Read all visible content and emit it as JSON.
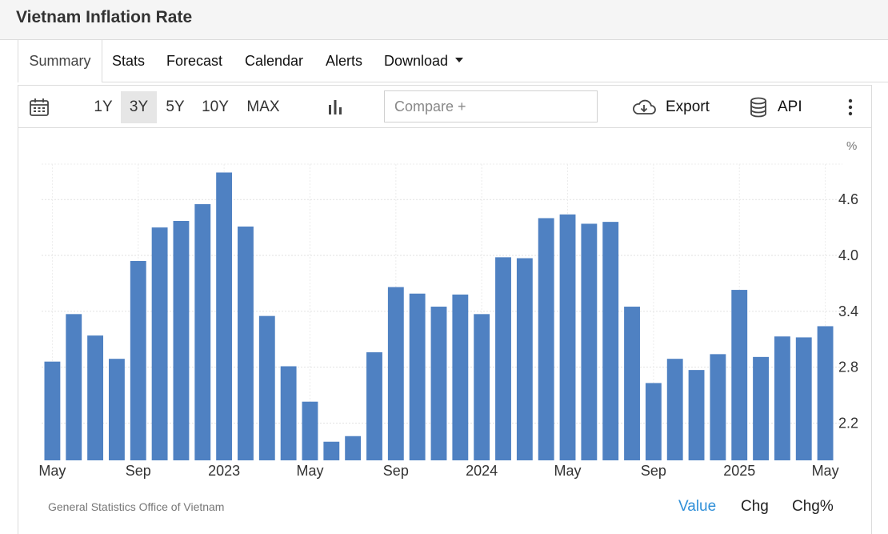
{
  "page": {
    "title": "Vietnam Inflation Rate"
  },
  "tabs": [
    {
      "label": "Summary",
      "active": true
    },
    {
      "label": "Stats"
    },
    {
      "label": "Forecast"
    },
    {
      "label": "Calendar"
    },
    {
      "label": "Alerts"
    },
    {
      "label": "Download",
      "has_dropdown": true
    }
  ],
  "toolbar": {
    "ranges": [
      "1Y",
      "3Y",
      "5Y",
      "10Y",
      "MAX"
    ],
    "selected_range": "3Y",
    "compare_placeholder": "Compare +",
    "export_label": "Export",
    "api_label": "API",
    "icons": [
      "calendar-icon",
      "bar-chart-icon",
      "cloud-download-icon",
      "database-icon",
      "more-vertical-icon"
    ]
  },
  "chart_data": {
    "type": "bar",
    "unit": "%",
    "bar_color": "#4f81c2",
    "categories": [
      "May 2022",
      "Jun 2022",
      "Jul 2022",
      "Aug 2022",
      "Sep 2022",
      "Oct 2022",
      "Nov 2022",
      "Dec 2022",
      "Jan 2023",
      "Feb 2023",
      "Mar 2023",
      "Apr 2023",
      "May 2023",
      "Jun 2023",
      "Jul 2023",
      "Aug 2023",
      "Sep 2023",
      "Oct 2023",
      "Nov 2023",
      "Dec 2023",
      "Jan 2024",
      "Feb 2024",
      "Mar 2024",
      "Apr 2024",
      "May 2024",
      "Jun 2024",
      "Jul 2024",
      "Aug 2024",
      "Sep 2024",
      "Oct 2024",
      "Nov 2024",
      "Dec 2024",
      "Jan 2025",
      "Feb 2025",
      "Mar 2025",
      "Apr 2025",
      "May 2025"
    ],
    "values": [
      2.86,
      3.37,
      3.14,
      2.89,
      3.94,
      4.3,
      4.37,
      4.55,
      4.89,
      4.31,
      3.35,
      2.81,
      2.43,
      2.0,
      2.06,
      2.96,
      3.66,
      3.59,
      3.45,
      3.58,
      3.37,
      3.98,
      3.97,
      4.4,
      4.44,
      4.34,
      4.36,
      3.45,
      2.63,
      2.89,
      2.77,
      2.94,
      3.63,
      2.91,
      3.13,
      3.12,
      3.24
    ],
    "x_tick_labels": [
      "May",
      "Sep",
      "2023",
      "May",
      "Sep",
      "2024",
      "May",
      "Sep",
      "2025",
      "May"
    ],
    "x_tick_positions": [
      0,
      4,
      8,
      12,
      16,
      20,
      24,
      28,
      32,
      36
    ],
    "y_ticks": [
      2.2,
      2.8,
      3.4,
      4.0,
      4.6
    ],
    "y_tick_labels": [
      "2.2",
      "2.8",
      "3.4",
      "4.0",
      "4.6"
    ],
    "ylim": [
      1.8,
      4.98
    ],
    "y_axis_position": "right",
    "grid": true
  },
  "footer": {
    "source": "General Statistics Office of Vietnam",
    "links": [
      {
        "label": "Value",
        "active": true,
        "color": "#2f8fd8"
      },
      {
        "label": "Chg"
      },
      {
        "label": "Chg%"
      }
    ]
  }
}
